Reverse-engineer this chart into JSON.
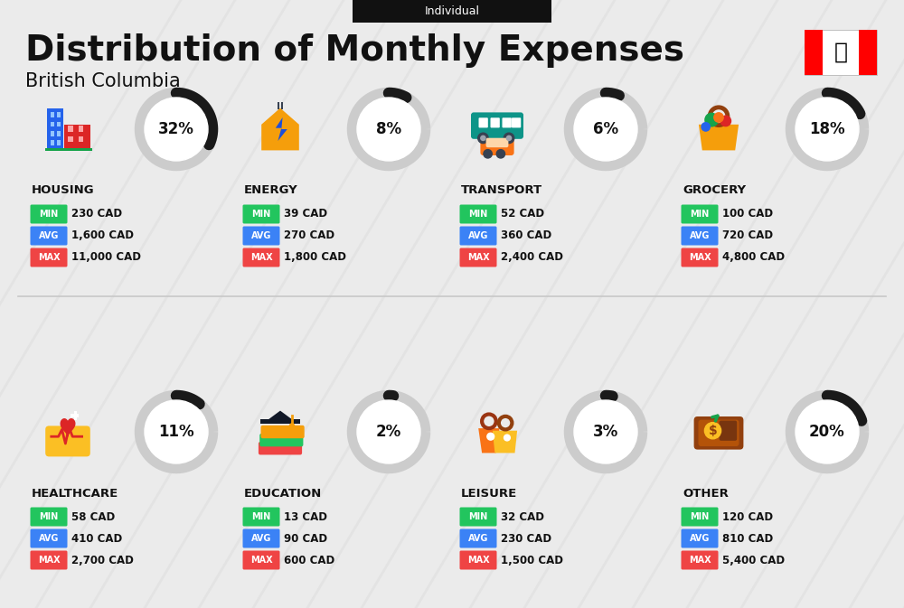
{
  "title": "Distribution of Monthly Expenses",
  "subtitle": "British Columbia",
  "tag": "Individual",
  "bg_color": "#ebebeb",
  "categories": [
    {
      "name": "HOUSING",
      "pct": 32,
      "min": "230 CAD",
      "avg": "1,600 CAD",
      "max": "11,000 CAD",
      "row": 0,
      "col": 0
    },
    {
      "name": "ENERGY",
      "pct": 8,
      "min": "39 CAD",
      "avg": "270 CAD",
      "max": "1,800 CAD",
      "row": 0,
      "col": 1
    },
    {
      "name": "TRANSPORT",
      "pct": 6,
      "min": "52 CAD",
      "avg": "360 CAD",
      "max": "2,400 CAD",
      "row": 0,
      "col": 2
    },
    {
      "name": "GROCERY",
      "pct": 18,
      "min": "100 CAD",
      "avg": "720 CAD",
      "max": "4,800 CAD",
      "row": 0,
      "col": 3
    },
    {
      "name": "HEALTHCARE",
      "pct": 11,
      "min": "58 CAD",
      "avg": "410 CAD",
      "max": "2,700 CAD",
      "row": 1,
      "col": 0
    },
    {
      "name": "EDUCATION",
      "pct": 2,
      "min": "13 CAD",
      "avg": "90 CAD",
      "max": "600 CAD",
      "row": 1,
      "col": 1
    },
    {
      "name": "LEISURE",
      "pct": 3,
      "min": "32 CAD",
      "avg": "230 CAD",
      "max": "1,500 CAD",
      "row": 1,
      "col": 2
    },
    {
      "name": "OTHER",
      "pct": 20,
      "min": "120 CAD",
      "avg": "810 CAD",
      "max": "5,400 CAD",
      "row": 1,
      "col": 3
    }
  ],
  "color_min": "#22c55e",
  "color_avg": "#3b82f6",
  "color_max": "#ef4444",
  "color_circle_bg": "#cccccc",
  "color_circle_arc": "#1a1a1a",
  "label_color": "#ffffff",
  "name_color": "#111111",
  "value_color": "#111111",
  "stripe_color": "#e0e0e0",
  "divider_color": "#c8c8c8"
}
